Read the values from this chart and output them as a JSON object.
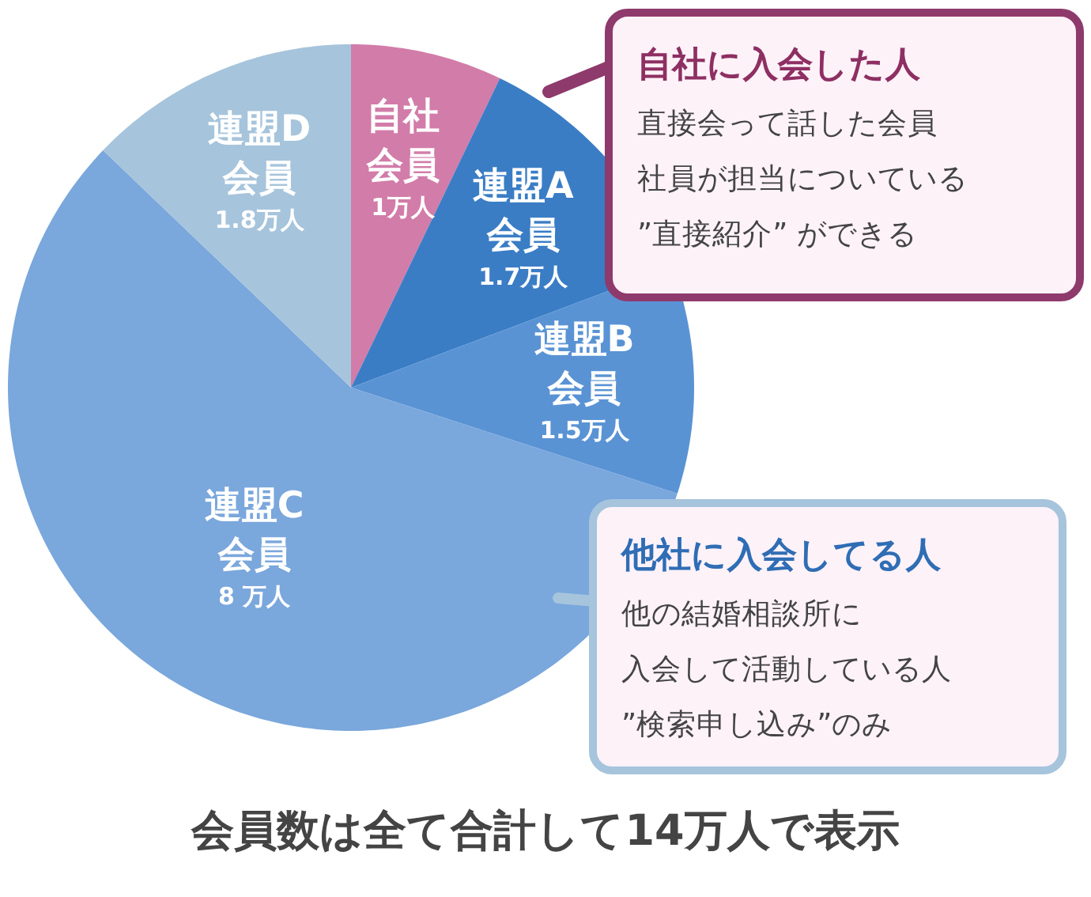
{
  "chart_data": {
    "type": "pie",
    "title": "会員数は全て合計して14万人で表示",
    "categories": [
      "自社会員",
      "連盟A会員",
      "連盟B会員",
      "連盟C会員",
      "連盟D会員"
    ],
    "values": [
      1,
      1.7,
      1.5,
      8,
      1.8
    ],
    "value_labels": [
      "1万人",
      "1.7万人",
      "1.5万人",
      "8 万人",
      "1.8万人"
    ],
    "colors": [
      "#d27ca9",
      "#3a7dc5",
      "#5a93d4",
      "#7aa7dc",
      "#a6c4dc"
    ],
    "annotations": [
      "自社に入会した人",
      "直接会って話した会員",
      "社員が担当についている",
      "”直接紹介” ができる",
      "他社に入会してる人",
      "他の結婚相談所に",
      "入会して活動している人",
      "”検索申し込み”のみ"
    ]
  }
}
